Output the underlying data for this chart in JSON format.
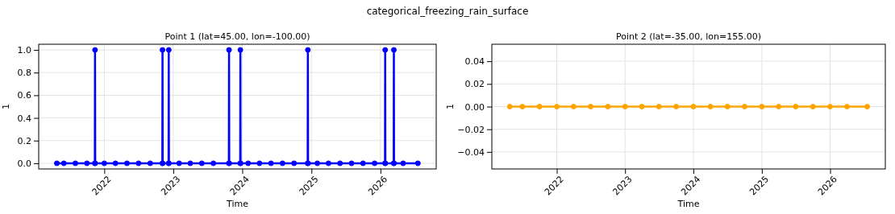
{
  "chart_data": [
    {
      "type": "line",
      "title": "Point 1 (lat=45.00, lon=-100.00)",
      "xlabel": "Time",
      "ylabel": "1",
      "annotations": [
        "categorical_freezing_rain_surface"
      ],
      "grid": true,
      "marker": "circle",
      "line_style": "solid",
      "x": [
        "2021-04-25",
        "2021-06-01",
        "2021-08-01",
        "2021-10-01",
        "2021-11-12",
        "2021-11-13",
        "2021-11-14",
        "2022-01-01",
        "2022-03-01",
        "2022-05-01",
        "2022-07-01",
        "2022-09-01",
        "2022-11-04",
        "2022-11-05",
        "2022-11-06",
        "2022-12-07",
        "2022-12-08",
        "2022-12-09",
        "2023-02-01",
        "2023-04-01",
        "2023-06-01",
        "2023-08-01",
        "2023-10-22",
        "2023-10-23",
        "2023-10-24",
        "2023-12-21",
        "2023-12-22",
        "2023-12-23",
        "2024-02-01",
        "2024-04-01",
        "2024-06-01",
        "2024-08-01",
        "2024-10-01",
        "2024-12-12",
        "2024-12-13",
        "2024-12-14",
        "2025-02-01",
        "2025-04-01",
        "2025-06-01",
        "2025-08-01",
        "2025-10-01",
        "2025-12-01",
        "2026-01-25",
        "2026-01-26",
        "2026-01-27",
        "2026-03-12",
        "2026-03-13",
        "2026-03-14",
        "2026-05-01",
        "2026-07-18"
      ],
      "series": [
        {
          "color": "#0000ff",
          "values": [
            0,
            0,
            0,
            0,
            0,
            1,
            0,
            0,
            0,
            0,
            0,
            0,
            0,
            1,
            0,
            0,
            1,
            0,
            0,
            0,
            0,
            0,
            0,
            1,
            0,
            0,
            1,
            0,
            0,
            0,
            0,
            0,
            0,
            0,
            1,
            0,
            0,
            0,
            0,
            0,
            0,
            0,
            0,
            1,
            0,
            0,
            1,
            0,
            0,
            0
          ]
        }
      ],
      "xlim": [
        "2021-01-19",
        "2026-10-23"
      ],
      "xticks": [
        {
          "value": "2022-01-01",
          "label": "2022"
        },
        {
          "value": "2023-01-01",
          "label": "2023"
        },
        {
          "value": "2024-01-01",
          "label": "2024"
        },
        {
          "value": "2025-01-01",
          "label": "2025"
        },
        {
          "value": "2026-01-01",
          "label": "2026"
        }
      ],
      "ylim": [
        -0.05,
        1.05
      ],
      "yticks": [
        {
          "value": 0,
          "label": "0.0"
        },
        {
          "value": 0.2,
          "label": "0.2"
        },
        {
          "value": 0.4,
          "label": "0.4"
        },
        {
          "value": 0.6,
          "label": "0.6"
        },
        {
          "value": 0.8,
          "label": "0.8"
        },
        {
          "value": 1,
          "label": "1.0"
        }
      ]
    },
    {
      "type": "line",
      "title": "Point 2 (lat=-35.00, lon=155.00)",
      "xlabel": "Time",
      "ylabel": "1",
      "grid": true,
      "marker": "circle",
      "line_style": "solid",
      "x": [
        "2021-04-25",
        "2021-07-01",
        "2021-10-01",
        "2022-01-01",
        "2022-04-01",
        "2022-07-01",
        "2022-10-01",
        "2023-01-01",
        "2023-04-01",
        "2023-07-01",
        "2023-10-01",
        "2024-01-01",
        "2024-04-01",
        "2024-07-01",
        "2024-10-01",
        "2025-01-01",
        "2025-04-01",
        "2025-07-01",
        "2025-10-01",
        "2026-01-01",
        "2026-04-01",
        "2026-07-18"
      ],
      "series": [
        {
          "color": "#ffa500",
          "values": [
            0,
            0,
            0,
            0,
            0,
            0,
            0,
            0,
            0,
            0,
            0,
            0,
            0,
            0,
            0,
            0,
            0,
            0,
            0,
            0,
            0,
            0
          ]
        }
      ],
      "xlim": [
        "2021-01-19",
        "2026-10-23"
      ],
      "xticks": [
        {
          "value": "2022-01-01",
          "label": "2022"
        },
        {
          "value": "2023-01-01",
          "label": "2023"
        },
        {
          "value": "2024-01-01",
          "label": "2024"
        },
        {
          "value": "2025-01-01",
          "label": "2025"
        },
        {
          "value": "2026-01-01",
          "label": "2026"
        }
      ],
      "ylim": [
        -0.055,
        0.055
      ],
      "yticks": [
        {
          "value": -0.04,
          "label": "−0.04"
        },
        {
          "value": -0.02,
          "label": "−0.02"
        },
        {
          "value": 0,
          "label": "0.00"
        },
        {
          "value": 0.02,
          "label": "0.02"
        },
        {
          "value": 0.04,
          "label": "0.04"
        }
      ]
    }
  ]
}
